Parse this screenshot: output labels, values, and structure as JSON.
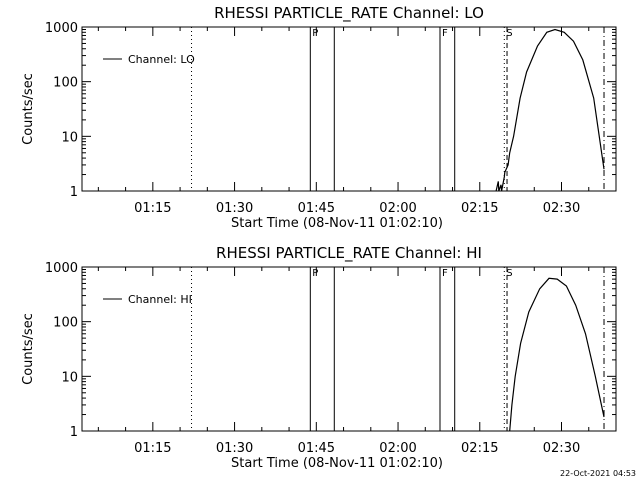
{
  "chart_data": [
    {
      "type": "line",
      "title": "RHESSI PARTICLE_RATE Channel: LO",
      "xlabel": "Start Time (08-Nov-11 01:02:10)",
      "ylabel": "Counts/sec",
      "yscale": "log",
      "ylim": [
        1,
        1000
      ],
      "y_ticks": [
        1,
        10,
        100,
        1000
      ],
      "y_tick_labels": [
        "1",
        "10",
        "100",
        "1000"
      ],
      "xlim_minutes": [
        62,
        160
      ],
      "x_ticks": [
        75,
        90,
        105,
        120,
        135,
        150
      ],
      "x_tick_labels": [
        "01:15",
        "01:30",
        "01:45",
        "02:00",
        "02:15",
        "02:30"
      ],
      "legend": {
        "entries": [
          "Channel: LO"
        ],
        "position": "top-left"
      },
      "vlines": [
        {
          "x": 82.1,
          "style": "dotted"
        },
        {
          "x": 103.9,
          "style": "solid",
          "label": "P"
        },
        {
          "x": 108.3,
          "style": "solid"
        },
        {
          "x": 127.7,
          "style": "solid",
          "label": "F"
        },
        {
          "x": 130.4,
          "style": "solid"
        },
        {
          "x": 139.5,
          "style": "dotted",
          "label": "S"
        },
        {
          "x": 140.0,
          "style": "dashed"
        },
        {
          "x": 157.8,
          "style": "dashdot"
        }
      ],
      "series": [
        {
          "name": "Channel: LO",
          "x": [
            138,
            138.4,
            138.5,
            138.9,
            139,
            139.5,
            139.6,
            140.2,
            140.5,
            141.2,
            142.4,
            143.6,
            145.6,
            147.3,
            148.8,
            150.5,
            152.2,
            153.9,
            155.9,
            157.8
          ],
          "y": [
            1,
            1.5,
            1,
            1.3,
            1,
            1.8,
            2.2,
            3,
            5,
            10,
            50,
            150,
            450,
            800,
            900,
            800,
            550,
            250,
            50,
            2.5
          ]
        }
      ]
    },
    {
      "type": "line",
      "title": "RHESSI PARTICLE_RATE Channel: HI",
      "xlabel": "Start Time (08-Nov-11 01:02:10)",
      "ylabel": "Counts/sec",
      "yscale": "log",
      "ylim": [
        1,
        1000
      ],
      "y_ticks": [
        1,
        10,
        100,
        1000
      ],
      "y_tick_labels": [
        "1",
        "10",
        "100",
        "1000"
      ],
      "xlim_minutes": [
        62,
        160
      ],
      "x_ticks": [
        75,
        90,
        105,
        120,
        135,
        150
      ],
      "x_tick_labels": [
        "01:15",
        "01:30",
        "01:45",
        "02:00",
        "02:15",
        "02:30"
      ],
      "legend": {
        "entries": [
          "Channel: HI"
        ],
        "position": "top-left"
      },
      "vlines": [
        {
          "x": 82.1,
          "style": "dotted"
        },
        {
          "x": 103.9,
          "style": "solid",
          "label": "P"
        },
        {
          "x": 108.3,
          "style": "solid"
        },
        {
          "x": 127.7,
          "style": "solid",
          "label": "F"
        },
        {
          "x": 130.4,
          "style": "solid"
        },
        {
          "x": 139.5,
          "style": "dotted",
          "label": "S"
        },
        {
          "x": 140.0,
          "style": "dashed"
        },
        {
          "x": 157.8,
          "style": "dashdot"
        }
      ],
      "series": [
        {
          "name": "Channel: HI",
          "x": [
            140.5,
            140.9,
            141.5,
            142.5,
            144,
            146,
            147.7,
            149.2,
            150.9,
            152.6,
            154.4,
            156.2,
            157.8
          ],
          "y": [
            1,
            3,
            10,
            40,
            150,
            400,
            620,
            600,
            450,
            200,
            60,
            10,
            1.8
          ]
        }
      ]
    }
  ],
  "timestamp": "22-Oct-2021 04:53"
}
